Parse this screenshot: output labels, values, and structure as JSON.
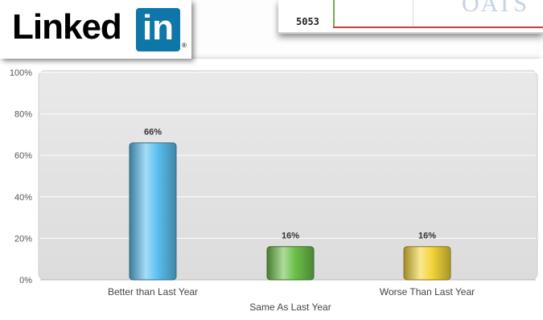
{
  "logo": {
    "word": "Linked",
    "box_text": "in",
    "reg_mark": "®",
    "name": "linkedin-logo"
  },
  "background_card": {
    "number": "5053",
    "ghost_text": "OATS"
  },
  "chart_data": {
    "type": "bar",
    "categories": [
      "Better than Last Year",
      "Same As Last Year",
      "Worse Than Last Year"
    ],
    "values": [
      66,
      16,
      16
    ],
    "data_labels": [
      "66%",
      "16%",
      "16%"
    ],
    "colors": [
      "#5bc0f0",
      "#6cc04a",
      "#f3d53a"
    ],
    "yticks": [
      "0%",
      "20%",
      "40%",
      "60%",
      "80%",
      "100%"
    ],
    "ylim": [
      0,
      100
    ],
    "title": "",
    "xlabel": "",
    "ylabel": "",
    "grid": true,
    "legend": "none"
  }
}
